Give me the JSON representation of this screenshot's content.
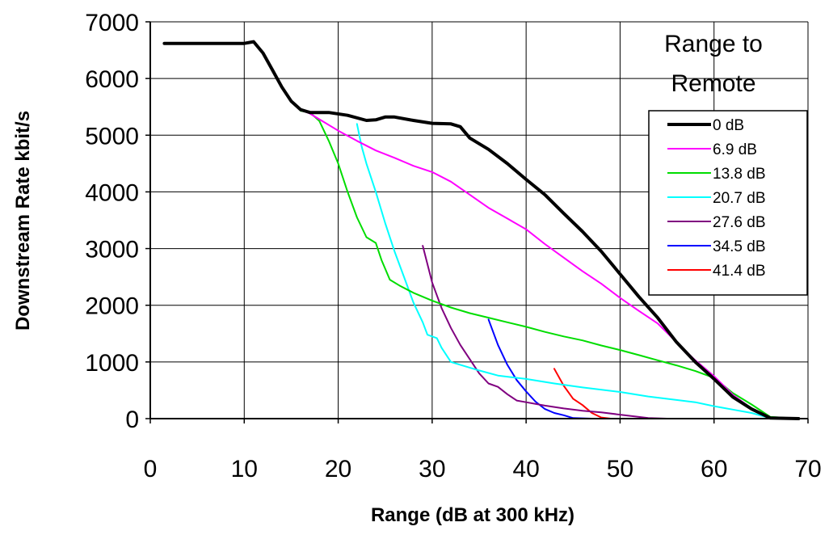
{
  "chart_data": {
    "type": "line",
    "xlabel": "Range (dB at 300 kHz)",
    "ylabel": "Downstream Rate kbit/s",
    "xlim": [
      0,
      70
    ],
    "ylim": [
      0,
      7000
    ],
    "x_ticks": [
      "0",
      "10",
      "20",
      "30",
      "40",
      "50",
      "60",
      "70"
    ],
    "y_ticks": [
      "0",
      "1000",
      "2000",
      "3000",
      "4000",
      "5000",
      "6000",
      "7000"
    ],
    "grid": true,
    "legend": {
      "title_lines": [
        "Range  to",
        "Remote"
      ],
      "placement": "top-right"
    },
    "series": [
      {
        "name": "0 dB",
        "color": "#000000",
        "width": 4,
        "points": [
          [
            1.5,
            6620
          ],
          [
            10,
            6620
          ],
          [
            11,
            6650
          ],
          [
            12,
            6450
          ],
          [
            13,
            6150
          ],
          [
            14,
            5850
          ],
          [
            15,
            5600
          ],
          [
            16,
            5450
          ],
          [
            17,
            5400
          ],
          [
            19,
            5400
          ],
          [
            21,
            5350
          ],
          [
            23,
            5260
          ],
          [
            24,
            5270
          ],
          [
            25,
            5320
          ],
          [
            26,
            5320
          ],
          [
            28,
            5260
          ],
          [
            30,
            5210
          ],
          [
            32,
            5200
          ],
          [
            33,
            5150
          ],
          [
            34,
            4950
          ],
          [
            36,
            4750
          ],
          [
            38,
            4500
          ],
          [
            40,
            4220
          ],
          [
            42,
            3950
          ],
          [
            44,
            3620
          ],
          [
            46,
            3300
          ],
          [
            48,
            2950
          ],
          [
            50,
            2550
          ],
          [
            52,
            2150
          ],
          [
            54,
            1780
          ],
          [
            56,
            1350
          ],
          [
            58,
            1000
          ],
          [
            60,
            700
          ],
          [
            62,
            380
          ],
          [
            64,
            170
          ],
          [
            66,
            10
          ],
          [
            69,
            0
          ]
        ]
      },
      {
        "name": "6.9 dB",
        "color": "#ff00ff",
        "width": 2,
        "points": [
          [
            8,
            6630
          ],
          [
            10,
            6630
          ],
          [
            11,
            6660
          ],
          [
            12,
            6450
          ],
          [
            13,
            6150
          ],
          [
            14,
            5850
          ],
          [
            15,
            5600
          ],
          [
            16,
            5450
          ],
          [
            17,
            5380
          ],
          [
            18,
            5280
          ],
          [
            20,
            5080
          ],
          [
            22,
            4900
          ],
          [
            24,
            4730
          ],
          [
            26,
            4600
          ],
          [
            28,
            4460
          ],
          [
            30,
            4350
          ],
          [
            32,
            4180
          ],
          [
            34,
            3950
          ],
          [
            36,
            3720
          ],
          [
            38,
            3530
          ],
          [
            40,
            3340
          ],
          [
            42,
            3080
          ],
          [
            44,
            2840
          ],
          [
            46,
            2600
          ],
          [
            48,
            2380
          ],
          [
            50,
            2130
          ],
          [
            52,
            1900
          ],
          [
            54,
            1680
          ],
          [
            56,
            1350
          ],
          [
            58,
            1030
          ],
          [
            60,
            750
          ],
          [
            62,
            420
          ],
          [
            64,
            180
          ],
          [
            66,
            20
          ],
          [
            69,
            0
          ]
        ]
      },
      {
        "name": "13.8 dB",
        "color": "#00dd00",
        "width": 2,
        "points": [
          [
            16,
            5430
          ],
          [
            17,
            5400
          ],
          [
            18,
            5250
          ],
          [
            19,
            4900
          ],
          [
            20,
            4500
          ],
          [
            21,
            4000
          ],
          [
            22,
            3550
          ],
          [
            23,
            3200
          ],
          [
            24,
            3100
          ],
          [
            24.6,
            2800
          ],
          [
            25.5,
            2450
          ],
          [
            26.5,
            2350
          ],
          [
            28,
            2220
          ],
          [
            30,
            2080
          ],
          [
            32,
            1960
          ],
          [
            34,
            1860
          ],
          [
            36,
            1780
          ],
          [
            38,
            1700
          ],
          [
            40,
            1620
          ],
          [
            42,
            1530
          ],
          [
            44,
            1450
          ],
          [
            46,
            1380
          ],
          [
            48,
            1290
          ],
          [
            50,
            1210
          ],
          [
            52,
            1120
          ],
          [
            54,
            1030
          ],
          [
            56,
            940
          ],
          [
            58,
            840
          ],
          [
            60,
            720
          ],
          [
            62,
            450
          ],
          [
            64,
            250
          ],
          [
            66,
            30
          ],
          [
            69,
            0
          ]
        ]
      },
      {
        "name": "20.7 dB",
        "color": "#00ffff",
        "width": 2,
        "points": [
          [
            22,
            5200
          ],
          [
            22.5,
            4800
          ],
          [
            23,
            4500
          ],
          [
            24,
            4000
          ],
          [
            25,
            3450
          ],
          [
            26,
            2950
          ],
          [
            27,
            2500
          ],
          [
            28,
            2050
          ],
          [
            29,
            1700
          ],
          [
            29.5,
            1480
          ],
          [
            30.5,
            1420
          ],
          [
            31,
            1250
          ],
          [
            32,
            1000
          ],
          [
            33,
            950
          ],
          [
            35,
            850
          ],
          [
            37,
            760
          ],
          [
            40,
            700
          ],
          [
            43,
            620
          ],
          [
            46,
            550
          ],
          [
            50,
            470
          ],
          [
            53,
            390
          ],
          [
            56,
            330
          ],
          [
            58,
            290
          ],
          [
            60,
            220
          ],
          [
            62,
            160
          ],
          [
            64,
            100
          ],
          [
            65.5,
            30
          ],
          [
            69,
            0
          ]
        ]
      },
      {
        "name": "27.6 dB",
        "color": "#800080",
        "width": 2,
        "points": [
          [
            29,
            3050
          ],
          [
            30,
            2400
          ],
          [
            31,
            1950
          ],
          [
            32,
            1600
          ],
          [
            33,
            1300
          ],
          [
            34,
            1050
          ],
          [
            35,
            800
          ],
          [
            36,
            620
          ],
          [
            37,
            560
          ],
          [
            38,
            430
          ],
          [
            39,
            320
          ],
          [
            40,
            290
          ],
          [
            42,
            230
          ],
          [
            44,
            180
          ],
          [
            46,
            140
          ],
          [
            48,
            110
          ],
          [
            50,
            70
          ],
          [
            52,
            30
          ],
          [
            53,
            10
          ],
          [
            55,
            0
          ],
          [
            69,
            0
          ]
        ]
      },
      {
        "name": "34.5 dB",
        "color": "#0000ff",
        "width": 2,
        "points": [
          [
            36,
            1750
          ],
          [
            37,
            1300
          ],
          [
            38,
            950
          ],
          [
            39,
            680
          ],
          [
            40,
            480
          ],
          [
            41,
            300
          ],
          [
            42,
            170
          ],
          [
            43,
            100
          ],
          [
            44,
            60
          ],
          [
            45,
            10
          ],
          [
            47,
            0
          ],
          [
            69,
            0
          ]
        ]
      },
      {
        "name": "41.4 dB",
        "color": "#ff0000",
        "width": 2,
        "points": [
          [
            43,
            880
          ],
          [
            44,
            580
          ],
          [
            45,
            350
          ],
          [
            46,
            240
          ],
          [
            47,
            100
          ],
          [
            48,
            20
          ],
          [
            49,
            0
          ],
          [
            69,
            0
          ]
        ]
      }
    ]
  }
}
